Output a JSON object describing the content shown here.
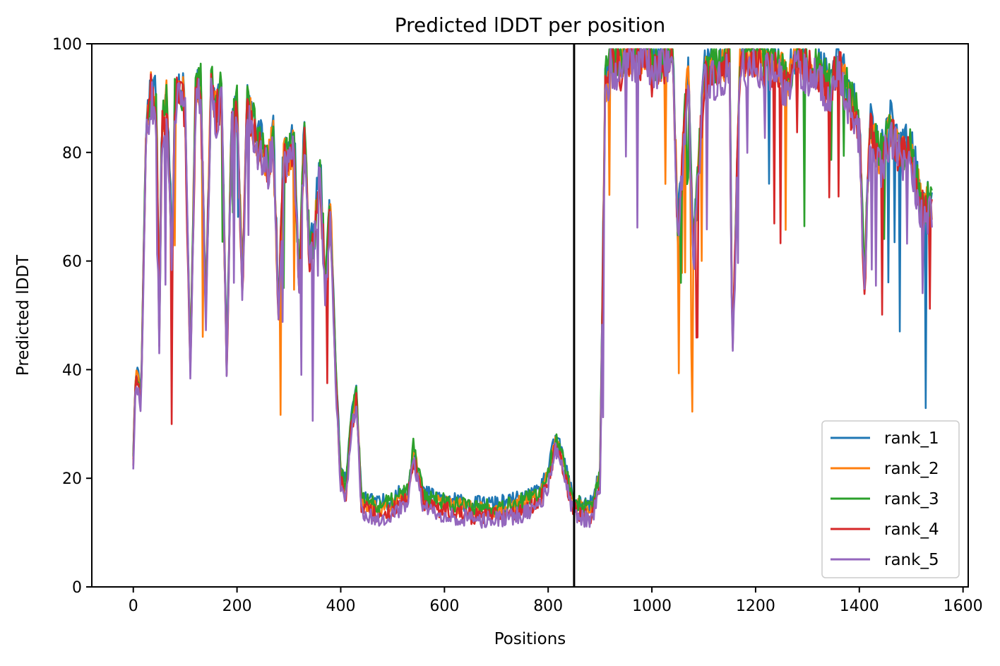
{
  "chart_data": {
    "type": "line",
    "title": "Predicted lDDT per position",
    "xlabel": "Positions",
    "ylabel": "Predicted lDDT",
    "xlim": [
      -80,
      1610
    ],
    "ylim": [
      0,
      100
    ],
    "x_ticks": [
      0,
      200,
      400,
      600,
      800,
      1000,
      1200,
      1400,
      1600
    ],
    "y_ticks": [
      0,
      20,
      40,
      60,
      80,
      100
    ],
    "grid": false,
    "legend_position": "lower-right",
    "vertical_line_x": 850,
    "series": [
      {
        "name": "rank_1",
        "color": "#1f77b4",
        "offset": 1.2,
        "seed": 11
      },
      {
        "name": "rank_2",
        "color": "#ff7f0e",
        "offset": 0.3,
        "seed": 23
      },
      {
        "name": "rank_3",
        "color": "#2ca02c",
        "offset": 0.8,
        "seed": 37
      },
      {
        "name": "rank_4",
        "color": "#d62728",
        "offset": -0.9,
        "seed": 51
      },
      {
        "name": "rank_5",
        "color": "#9467bd",
        "offset": -1.6,
        "seed": 67
      }
    ],
    "profile_x": [
      0,
      5,
      15,
      25,
      35,
      45,
      50,
      55,
      65,
      75,
      80,
      90,
      100,
      110,
      120,
      130,
      140,
      150,
      160,
      170,
      180,
      190,
      200,
      210,
      220,
      230,
      240,
      250,
      260,
      270,
      280,
      290,
      300,
      310,
      320,
      330,
      340,
      350,
      360,
      370,
      380,
      390,
      400,
      410,
      420,
      430,
      440,
      450,
      470,
      500,
      530,
      540,
      560,
      600,
      650,
      700,
      750,
      780,
      800,
      815,
      825,
      835,
      850,
      870,
      885,
      900,
      910,
      920,
      940,
      960,
      990,
      1000,
      1020,
      1040,
      1050,
      1070,
      1080,
      1100,
      1120,
      1150,
      1155,
      1170,
      1200,
      1220,
      1240,
      1260,
      1280,
      1300,
      1320,
      1340,
      1360,
      1380,
      1400,
      1410,
      1420,
      1440,
      1460,
      1480,
      1500,
      1520,
      1540
    ],
    "profile_y": [
      24,
      40,
      35,
      85,
      92,
      88,
      45,
      85,
      90,
      60,
      90,
      92,
      88,
      40,
      90,
      92,
      50,
      92,
      88,
      91,
      40,
      85,
      88,
      55,
      90,
      85,
      82,
      80,
      78,
      82,
      50,
      80,
      78,
      82,
      55,
      85,
      60,
      65,
      78,
      55,
      70,
      40,
      20,
      18,
      30,
      35,
      16,
      15,
      14,
      15,
      17,
      25,
      16,
      15,
      14,
      14,
      15,
      16,
      20,
      27,
      24,
      20,
      15,
      14,
      14,
      20,
      92,
      97,
      96,
      98,
      98,
      95,
      97,
      98,
      65,
      96,
      60,
      94,
      95,
      97,
      42,
      97,
      98,
      96,
      97,
      92,
      98,
      96,
      95,
      92,
      97,
      90,
      85,
      55,
      85,
      78,
      85,
      80,
      80,
      70,
      70
    ]
  },
  "legend": {
    "items": [
      "rank_1",
      "rank_2",
      "rank_3",
      "rank_4",
      "rank_5"
    ]
  }
}
